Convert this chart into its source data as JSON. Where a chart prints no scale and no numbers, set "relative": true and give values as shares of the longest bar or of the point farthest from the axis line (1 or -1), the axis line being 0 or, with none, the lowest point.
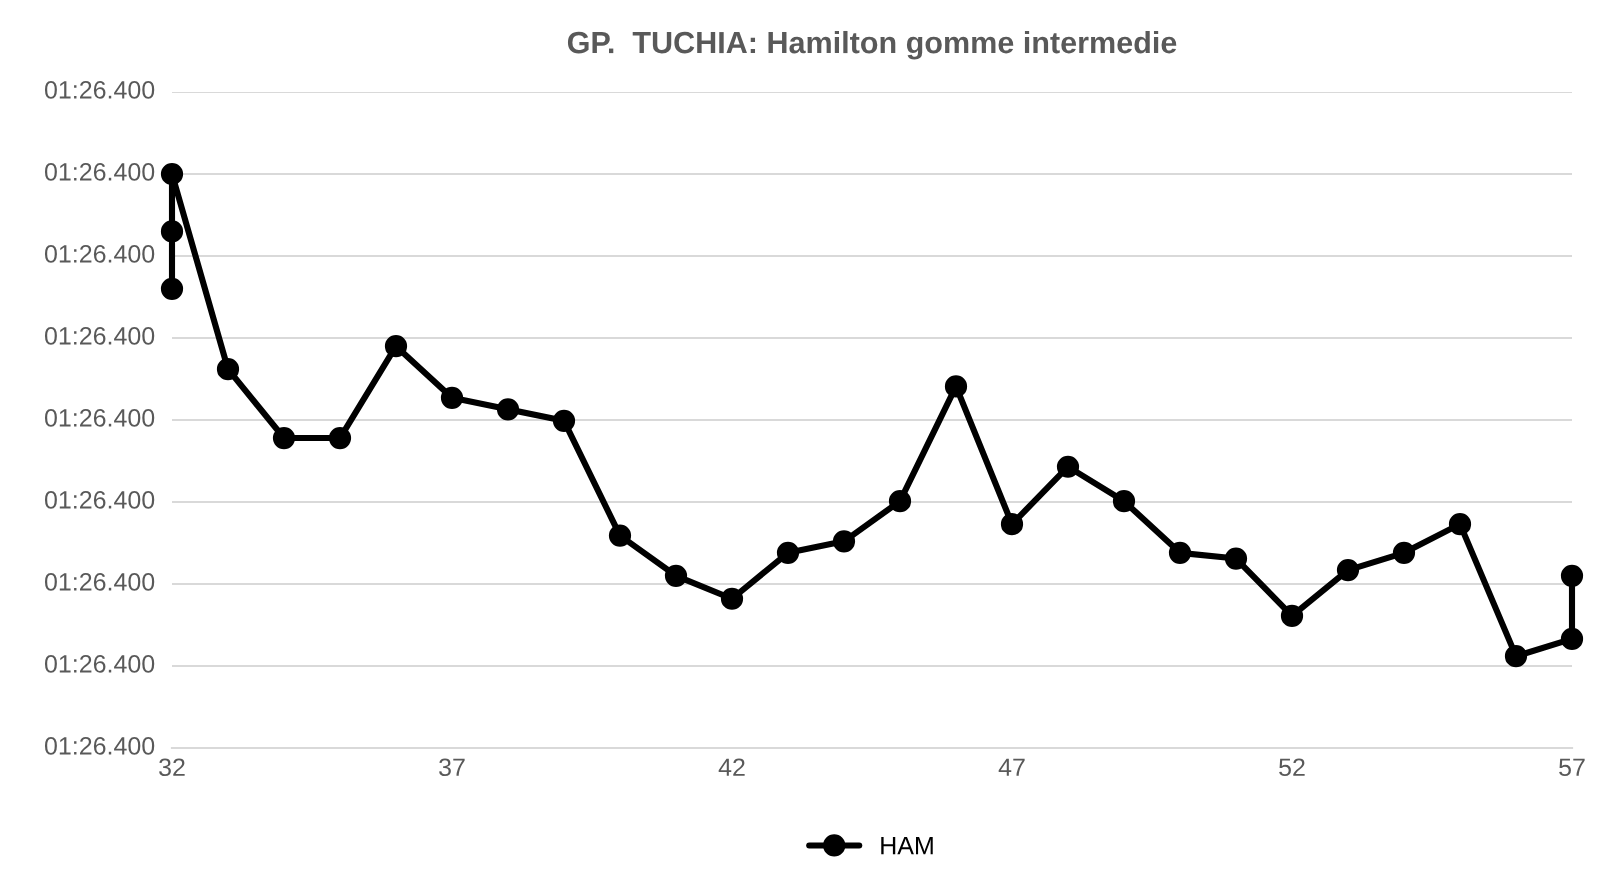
{
  "chart_data": {
    "type": "line",
    "title": "GP.  TUCHIA: Hamilton gomme intermedie",
    "x": [
      32,
      32,
      32,
      33,
      34,
      35,
      36,
      37,
      38,
      39,
      40,
      41,
      42,
      43,
      44,
      45,
      46,
      47,
      48,
      49,
      50,
      51,
      52,
      53,
      54,
      55,
      56,
      57,
      57
    ],
    "series": [
      {
        "name": "HAM",
        "color": "#000000",
        "values": [
          0.8,
          0.9,
          1.0,
          0.66,
          0.54,
          0.54,
          0.7,
          0.61,
          0.59,
          0.57,
          0.37,
          0.3,
          0.26,
          0.34,
          0.36,
          0.43,
          0.63,
          0.39,
          0.49,
          0.43,
          0.34,
          0.33,
          0.23,
          0.31,
          0.34,
          0.39,
          0.16,
          0.19,
          0.3
        ]
      }
    ],
    "relative": true,
    "xlim": [
      32,
      57
    ],
    "xticks": [
      32,
      37,
      42,
      47,
      52,
      57
    ],
    "annotations": [
      "01:26.400",
      "01:26.400",
      "01:26.400",
      "01:26.400",
      "01:26.400",
      "01:26.400",
      "01:26.400",
      "01:26.400",
      "01:26.400"
    ],
    "grid": "y",
    "legend": "bottom",
    "marker": "circle",
    "line_style": "solid"
  }
}
